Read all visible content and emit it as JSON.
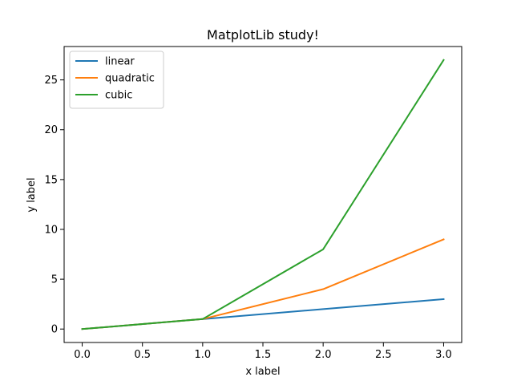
{
  "chart_data": {
    "type": "line",
    "title": "MatplotLib study!",
    "xlabel": "x label",
    "ylabel": "y label",
    "x": [
      0.0,
      1.0,
      2.0,
      3.0
    ],
    "series": [
      {
        "name": "linear",
        "values": [
          0,
          1,
          2,
          3
        ],
        "color": "#1f77b4"
      },
      {
        "name": "quadratic",
        "values": [
          0,
          1,
          4,
          9
        ],
        "color": "#ff7f0e"
      },
      {
        "name": "cubic",
        "values": [
          0,
          1,
          8,
          27
        ],
        "color": "#2ca02c"
      }
    ],
    "xlim": [
      -0.15,
      3.15
    ],
    "ylim": [
      -1.35,
      28.35
    ],
    "xticks": [
      0.0,
      0.5,
      1.0,
      1.5,
      2.0,
      2.5,
      3.0
    ],
    "xtick_labels": [
      "0.0",
      "0.5",
      "1.0",
      "1.5",
      "2.0",
      "2.5",
      "3.0"
    ],
    "yticks": [
      0,
      5,
      10,
      15,
      20,
      25
    ],
    "ytick_labels": [
      "0",
      "5",
      "10",
      "15",
      "20",
      "25"
    ],
    "grid": false,
    "legend_position": "top-left"
  }
}
